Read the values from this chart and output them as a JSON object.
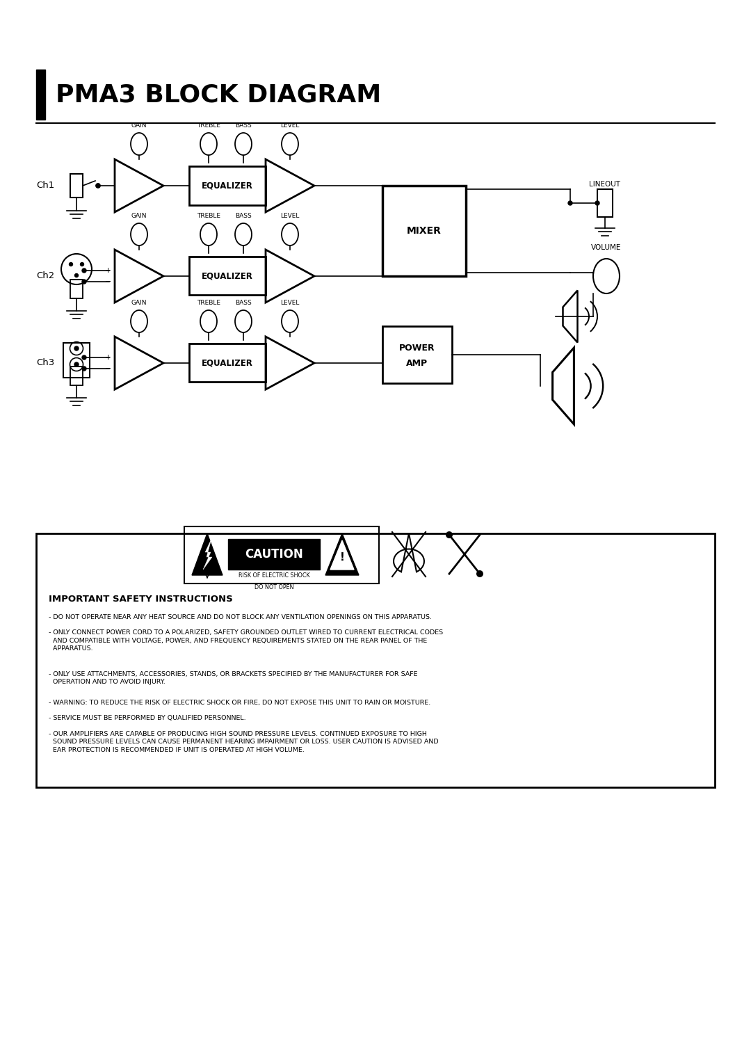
{
  "title": "PMA3 BLOCK DIAGRAM",
  "bg_color": "#ffffff",
  "safety_lines": [
    "- DO NOT OPERATE NEAR ANY HEAT SOURCE AND DO NOT BLOCK ANY VENTILATION OPENINGS ON THIS APPARATUS.",
    "- ONLY CONNECT POWER CORD TO A POLARIZED, SAFETY GROUNDED OUTLET WIRED TO CURRENT ELECTRICAL CODES\n  AND COMPATIBLE WITH VOLTAGE, POWER, AND FREQUENCY REQUIREMENTS STATED ON THE REAR PANEL OF THE\n  APPARATUS.",
    "- ONLY USE ATTACHMENTS, ACCESSORIES, STANDS, OR BRACKETS SPECIFIED BY THE MANUFACTURER FOR SAFE\n  OPERATION AND TO AVOID INJURY.",
    "- WARNING: TO REDUCE THE RISK OF ELECTRIC SHOCK OR FIRE, DO NOT EXPOSE THIS UNIT TO RAIN OR MOISTURE.",
    "- SERVICE MUST BE PERFORMED BY QUALIFIED PERSONNEL.",
    "- OUR AMPLIFIERS ARE CAPABLE OF PRODUCING HIGH SOUND PRESSURE LEVELS. CONTINUED EXPOSURE TO HIGH\n  SOUND PRESSURE LEVELS CAN CAUSE PERMANENT HEARING IMPAIRMENT OR LOSS. USER CAUTION IS ADVISED AND\n  EAR PROTECTION IS RECOMMENDED IF UNIT IS OPERATED AT HIGH VOLUME."
  ]
}
